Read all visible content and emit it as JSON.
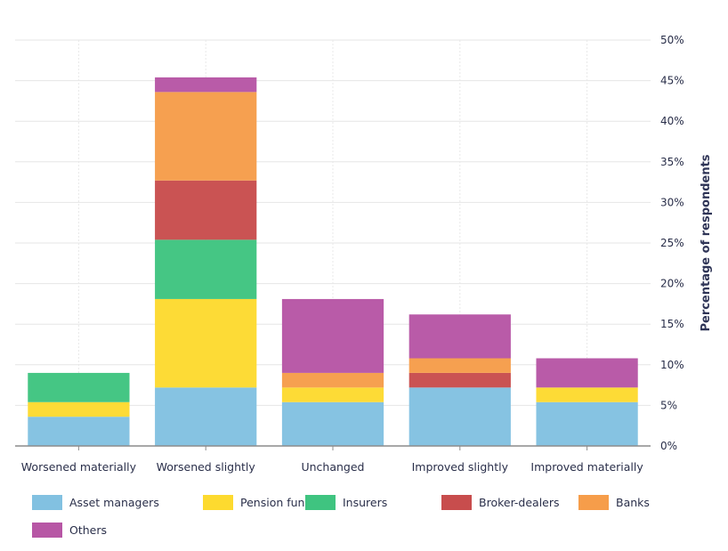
{
  "chart_data": {
    "type": "bar",
    "stacked": true,
    "title": "",
    "xlabel": "",
    "ylabel": "Percentage of respondents",
    "y_axis_side": "right",
    "ylim": [
      0,
      50
    ],
    "y_ticks": [
      0,
      5,
      10,
      15,
      20,
      25,
      30,
      35,
      40,
      45,
      50
    ],
    "y_tick_labels": [
      "0%",
      "5%",
      "10%",
      "15%",
      "20%",
      "25%",
      "30%",
      "35%",
      "40%",
      "45%",
      "50%"
    ],
    "grid": true,
    "legend_position": "bottom",
    "categories": [
      "Worsened materially",
      "Worsened slightly",
      "Unchanged",
      "Improved slightly",
      "Improved materially"
    ],
    "series": [
      {
        "name": "Asset managers",
        "color": "#82c1e1",
        "values": [
          3.6,
          7.2,
          5.4,
          7.2,
          5.4
        ]
      },
      {
        "name": "Pension funds",
        "color": "#fdda2f",
        "values": [
          1.8,
          10.9,
          1.8,
          0,
          1.8
        ]
      },
      {
        "name": "Insurers",
        "color": "#3fc480",
        "values": [
          3.6,
          7.3,
          0,
          0,
          0
        ]
      },
      {
        "name": "Broker-dealers",
        "color": "#c84d4d",
        "values": [
          0,
          7.3,
          0,
          1.8,
          0
        ]
      },
      {
        "name": "Banks",
        "color": "#f69d4a",
        "values": [
          0,
          10.9,
          1.8,
          1.8,
          0
        ]
      },
      {
        "name": "Others",
        "color": "#b756a5",
        "values": [
          0,
          1.8,
          9.1,
          5.4,
          3.6
        ]
      }
    ]
  }
}
